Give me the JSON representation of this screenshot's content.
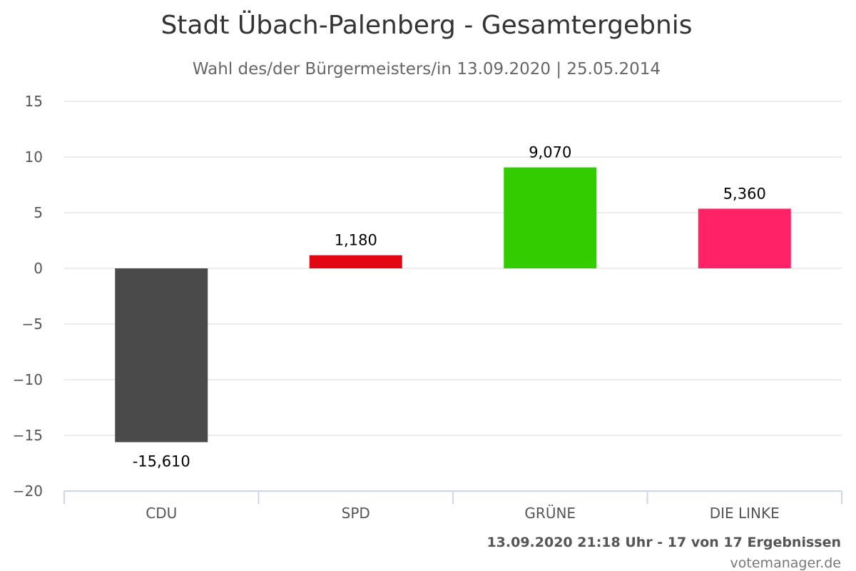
{
  "chart_data": {
    "type": "bar",
    "title": "Stadt Übach-Palenberg - Gesamtergebnis",
    "subtitle": "Wahl des/der Bürgermeisters/in 13.09.2020 | 25.05.2014",
    "categories": [
      "CDU",
      "SPD",
      "GRÜNE",
      "DIE LINKE"
    ],
    "values": [
      -15.61,
      1.18,
      9.07,
      5.36
    ],
    "data_labels": [
      "-15,610",
      "1,180",
      "9,070",
      "5,360"
    ],
    "colors": [
      "#4a4a4a",
      "#e30613",
      "#33cc00",
      "#ff2266"
    ],
    "ylim": [
      -20,
      15
    ],
    "yticks": [
      15,
      10,
      5,
      0,
      -5,
      -10,
      -15,
      -20
    ],
    "ytick_labels": [
      "15",
      "10",
      "5",
      "0",
      "−5",
      "−10",
      "−15",
      "−20"
    ],
    "grid": true,
    "legend": "none"
  },
  "footer": {
    "status": "13.09.2020 21:18 Uhr - 17 von 17 Ergebnissen",
    "credit": "votemanager.de"
  }
}
